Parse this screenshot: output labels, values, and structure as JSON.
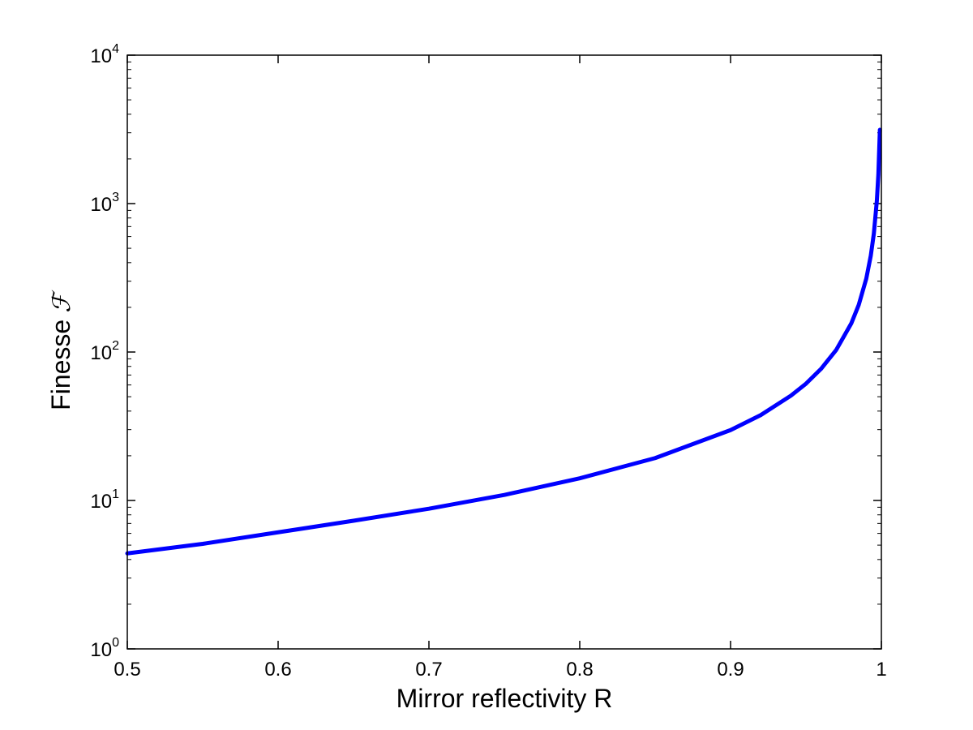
{
  "chart_data": {
    "type": "line",
    "title": "",
    "xlabel": "Mirror reflectivity R",
    "ylabel": "Finesse",
    "ylabel_symbol": "ℱ",
    "xlim": [
      0.5,
      1
    ],
    "ylim": [
      1,
      10000
    ],
    "yscale": "log",
    "grid": false,
    "x_ticks": [
      0.5,
      0.6,
      0.7,
      0.8,
      0.9,
      1
    ],
    "x_tick_labels": [
      "0.5",
      "0.6",
      "0.7",
      "0.8",
      "0.9",
      "1"
    ],
    "y_ticks": [
      1,
      10,
      100,
      1000,
      10000
    ],
    "y_tick_labels": [
      {
        "base": "10",
        "exp": "0"
      },
      {
        "base": "10",
        "exp": "1"
      },
      {
        "base": "10",
        "exp": "2"
      },
      {
        "base": "10",
        "exp": "3"
      },
      {
        "base": "10",
        "exp": "4"
      }
    ],
    "series": [
      {
        "color": "#0000ff",
        "x": [
          0.5,
          0.55,
          0.6,
          0.65,
          0.7,
          0.75,
          0.8,
          0.85,
          0.9,
          0.92,
          0.94,
          0.95,
          0.96,
          0.97,
          0.98,
          0.985,
          0.99,
          0.993,
          0.995,
          0.997,
          0.998,
          0.999
        ],
        "y": [
          4.4,
          5.1,
          6.1,
          7.3,
          8.8,
          10.9,
          14.1,
          19.3,
          29.8,
          37.6,
          50.8,
          61.2,
          77.0,
          103.1,
          155.5,
          207.8,
          312.6,
          447.2,
          626.8,
          1045.5,
          1569.5,
          3140.0
        ]
      }
    ]
  }
}
